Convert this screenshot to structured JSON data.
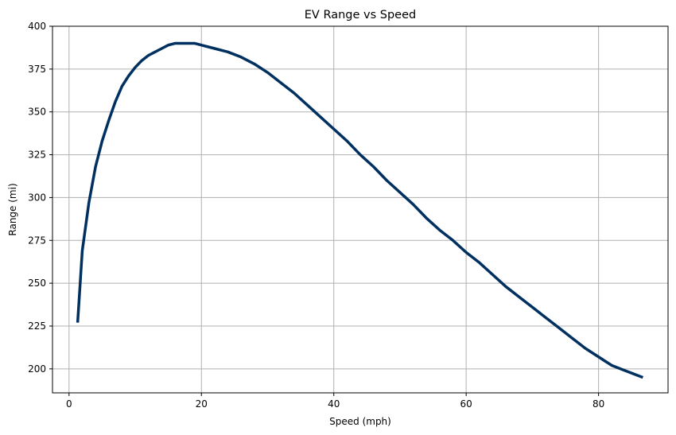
{
  "chart_data": {
    "type": "line",
    "title": "EV Range vs Speed",
    "xlabel": "Speed (mph)",
    "ylabel": "Range (mi)",
    "xlim": [
      -2.5,
      90.5
    ],
    "ylim": [
      186,
      400
    ],
    "xticks": [
      0,
      20,
      40,
      60,
      80
    ],
    "yticks": [
      200,
      225,
      250,
      275,
      300,
      325,
      350,
      375,
      400
    ],
    "grid": true,
    "series": [
      {
        "name": "Range",
        "color": "#003060",
        "x": [
          1.3,
          2.0,
          3.0,
          4.0,
          5.0,
          6.0,
          7.0,
          8.0,
          9.0,
          10.0,
          11.0,
          12.0,
          13.0,
          14.0,
          15.0,
          16.0,
          17.0,
          18.0,
          19.0,
          20.0,
          22.0,
          24.0,
          26.0,
          28.0,
          30.0,
          32.0,
          34.0,
          36.0,
          38.0,
          40.0,
          42.0,
          44.0,
          46.0,
          48.0,
          50.0,
          52.0,
          54.0,
          56.0,
          58.0,
          60.0,
          62.0,
          64.0,
          66.0,
          68.0,
          70.0,
          72.0,
          74.0,
          76.0,
          78.0,
          80.0,
          82.0,
          84.0,
          86.7
        ],
        "y": [
          227,
          269,
          297,
          318,
          333,
          345,
          356,
          365,
          371,
          376,
          380,
          383,
          385,
          387,
          389,
          390,
          390,
          390,
          390,
          389,
          387,
          385,
          382,
          378,
          373,
          367,
          361,
          354,
          347,
          340,
          333,
          325,
          318,
          310,
          303,
          296,
          288,
          281,
          275,
          268,
          262,
          255,
          248,
          242,
          236,
          230,
          224,
          218,
          212,
          207,
          202,
          199,
          195
        ]
      }
    ]
  }
}
